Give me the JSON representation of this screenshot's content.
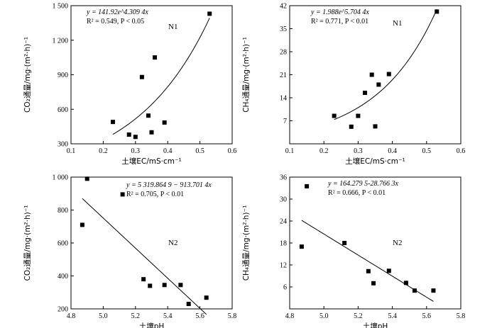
{
  "chart_data": [
    {
      "type": "scatter",
      "tag": "N1",
      "equation": "y = 141.92e^4.309 4x",
      "r2_text": "R² = 0.549,  P < 0.05",
      "xlabel": "土壤EC/mS·cm⁻¹",
      "ylabel": "CO₂通量/mg·(m²·h)⁻¹",
      "xlim": [
        0.1,
        0.6
      ],
      "ylim": [
        300,
        1500
      ],
      "xticks": [
        0.1,
        0.2,
        0.3,
        0.4,
        0.5,
        0.6
      ],
      "xtick_labels": [
        "0.1",
        "0.2",
        "0.3",
        "0.4",
        "0.5",
        "0.6"
      ],
      "yticks": [
        300,
        600,
        900,
        1200,
        1500
      ],
      "ytick_labels": [
        "300",
        "600",
        "900",
        "1 200",
        "1 500"
      ],
      "points": [
        [
          0.23,
          490
        ],
        [
          0.28,
          380
        ],
        [
          0.3,
          360
        ],
        [
          0.32,
          880
        ],
        [
          0.34,
          545
        ],
        [
          0.35,
          400
        ],
        [
          0.36,
          1050
        ],
        [
          0.39,
          485
        ],
        [
          0.53,
          1430
        ]
      ],
      "fit": {
        "kind": "exp",
        "a": 141.92,
        "b": 4.3094,
        "x_range": [
          0.23,
          0.53
        ]
      }
    },
    {
      "type": "scatter",
      "tag": "N1",
      "equation": "y = 1.988e^5.704 4x",
      "r2_text": "R² = 0.771,  P < 0.01",
      "xlabel": "土壤EC/mS·cm⁻¹",
      "ylabel": "CH₄通量/mg·(m²·h)⁻¹",
      "xlim": [
        0.1,
        0.6
      ],
      "ylim": [
        0,
        42
      ],
      "xticks": [
        0.1,
        0.2,
        0.3,
        0.4,
        0.5,
        0.6
      ],
      "xtick_labels": [
        "0.1",
        "0.2",
        "0.3",
        "0.4",
        "0.5",
        "0.6"
      ],
      "yticks": [
        7,
        14,
        21,
        28,
        35,
        42
      ],
      "ytick_labels": [
        "7",
        "14",
        "21",
        "28",
        "35",
        "42"
      ],
      "points": [
        [
          0.23,
          8.5
        ],
        [
          0.28,
          5.2
        ],
        [
          0.3,
          8.5
        ],
        [
          0.32,
          15.5
        ],
        [
          0.34,
          21
        ],
        [
          0.35,
          5.3
        ],
        [
          0.36,
          18
        ],
        [
          0.39,
          21.2
        ],
        [
          0.53,
          40.2
        ]
      ],
      "fit": {
        "kind": "exp",
        "a": 1.988,
        "b": 5.7044,
        "x_range": [
          0.23,
          0.53
        ]
      }
    },
    {
      "type": "scatter",
      "tag": "N2",
      "equation": "y = 5 319.864 9 − 913.701 4x",
      "r2_text": "R² = 0.705,  P < 0.01",
      "xlabel": "土壤pH",
      "ylabel": "CO₂通量/mg·(m²·h)⁻¹",
      "xlim": [
        4.8,
        5.8
      ],
      "ylim": [
        200,
        1000
      ],
      "xticks": [
        4.8,
        5.0,
        5.2,
        5.4,
        5.6,
        5.8
      ],
      "xtick_labels": [
        "4.8",
        "5.0",
        "5.2",
        "5.4",
        "5.6",
        "5.8"
      ],
      "yticks": [
        200,
        400,
        600,
        800,
        1000
      ],
      "ytick_labels": [
        "200",
        "400",
        "600",
        "800",
        "1 000"
      ],
      "points": [
        [
          4.87,
          710
        ],
        [
          4.9,
          990
        ],
        [
          5.12,
          895
        ],
        [
          5.25,
          380
        ],
        [
          5.29,
          340
        ],
        [
          5.38,
          345
        ],
        [
          5.48,
          345
        ],
        [
          5.53,
          230
        ],
        [
          5.64,
          268
        ]
      ],
      "fit": {
        "kind": "linear",
        "a": 5319.8649,
        "b": -913.7014,
        "x_range": [
          4.87,
          5.64
        ]
      }
    },
    {
      "type": "scatter",
      "tag": "N2",
      "equation": "y = 164.279 5-28.766 3x",
      "r2_text": "R² = 0.666,  P < 0.01",
      "xlabel": "土壤pH",
      "ylabel": "CH₄通量/mg·(m²·h)⁻¹",
      "xlim": [
        4.8,
        5.8
      ],
      "ylim": [
        0,
        36
      ],
      "xticks": [
        4.8,
        5.0,
        5.2,
        5.4,
        5.6,
        5.8
      ],
      "xtick_labels": [
        "4.8",
        "5.0",
        "5.2",
        "5.4",
        "5.6",
        "5.8"
      ],
      "yticks": [
        6,
        12,
        18,
        24,
        30,
        36
      ],
      "ytick_labels": [
        "6",
        "12",
        "18",
        "24",
        "30",
        "36"
      ],
      "points": [
        [
          4.87,
          17
        ],
        [
          4.9,
          33.5
        ],
        [
          5.12,
          18
        ],
        [
          5.26,
          10.3
        ],
        [
          5.29,
          7
        ],
        [
          5.38,
          10.4
        ],
        [
          5.48,
          7.1
        ],
        [
          5.53,
          5
        ],
        [
          5.64,
          5
        ]
      ],
      "fit": {
        "kind": "linear",
        "a": 164.2795,
        "b": -28.7663,
        "x_range": [
          4.87,
          5.64
        ]
      }
    }
  ]
}
